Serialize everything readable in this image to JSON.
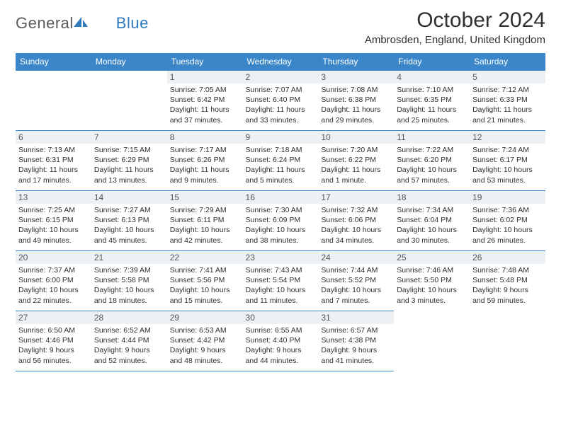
{
  "brand": {
    "part1": "General",
    "part2": "Blue"
  },
  "title": "October 2024",
  "location": "Ambrosden, England, United Kingdom",
  "colors": {
    "header_bg": "#3a86c8",
    "header_text": "#ffffff",
    "daynum_bg": "#eef1f3",
    "border": "#3a86c8",
    "text": "#303030",
    "logo_blue": "#2f79bd",
    "logo_gray": "#5a5a5a"
  },
  "weekdays": [
    "Sunday",
    "Monday",
    "Tuesday",
    "Wednesday",
    "Thursday",
    "Friday",
    "Saturday"
  ],
  "weeks": [
    [
      null,
      null,
      {
        "n": "1",
        "sr": "Sunrise: 7:05 AM",
        "ss": "Sunset: 6:42 PM",
        "dl": "Daylight: 11 hours and 37 minutes."
      },
      {
        "n": "2",
        "sr": "Sunrise: 7:07 AM",
        "ss": "Sunset: 6:40 PM",
        "dl": "Daylight: 11 hours and 33 minutes."
      },
      {
        "n": "3",
        "sr": "Sunrise: 7:08 AM",
        "ss": "Sunset: 6:38 PM",
        "dl": "Daylight: 11 hours and 29 minutes."
      },
      {
        "n": "4",
        "sr": "Sunrise: 7:10 AM",
        "ss": "Sunset: 6:35 PM",
        "dl": "Daylight: 11 hours and 25 minutes."
      },
      {
        "n": "5",
        "sr": "Sunrise: 7:12 AM",
        "ss": "Sunset: 6:33 PM",
        "dl": "Daylight: 11 hours and 21 minutes."
      }
    ],
    [
      {
        "n": "6",
        "sr": "Sunrise: 7:13 AM",
        "ss": "Sunset: 6:31 PM",
        "dl": "Daylight: 11 hours and 17 minutes."
      },
      {
        "n": "7",
        "sr": "Sunrise: 7:15 AM",
        "ss": "Sunset: 6:29 PM",
        "dl": "Daylight: 11 hours and 13 minutes."
      },
      {
        "n": "8",
        "sr": "Sunrise: 7:17 AM",
        "ss": "Sunset: 6:26 PM",
        "dl": "Daylight: 11 hours and 9 minutes."
      },
      {
        "n": "9",
        "sr": "Sunrise: 7:18 AM",
        "ss": "Sunset: 6:24 PM",
        "dl": "Daylight: 11 hours and 5 minutes."
      },
      {
        "n": "10",
        "sr": "Sunrise: 7:20 AM",
        "ss": "Sunset: 6:22 PM",
        "dl": "Daylight: 11 hours and 1 minute."
      },
      {
        "n": "11",
        "sr": "Sunrise: 7:22 AM",
        "ss": "Sunset: 6:20 PM",
        "dl": "Daylight: 10 hours and 57 minutes."
      },
      {
        "n": "12",
        "sr": "Sunrise: 7:24 AM",
        "ss": "Sunset: 6:17 PM",
        "dl": "Daylight: 10 hours and 53 minutes."
      }
    ],
    [
      {
        "n": "13",
        "sr": "Sunrise: 7:25 AM",
        "ss": "Sunset: 6:15 PM",
        "dl": "Daylight: 10 hours and 49 minutes."
      },
      {
        "n": "14",
        "sr": "Sunrise: 7:27 AM",
        "ss": "Sunset: 6:13 PM",
        "dl": "Daylight: 10 hours and 45 minutes."
      },
      {
        "n": "15",
        "sr": "Sunrise: 7:29 AM",
        "ss": "Sunset: 6:11 PM",
        "dl": "Daylight: 10 hours and 42 minutes."
      },
      {
        "n": "16",
        "sr": "Sunrise: 7:30 AM",
        "ss": "Sunset: 6:09 PM",
        "dl": "Daylight: 10 hours and 38 minutes."
      },
      {
        "n": "17",
        "sr": "Sunrise: 7:32 AM",
        "ss": "Sunset: 6:06 PM",
        "dl": "Daylight: 10 hours and 34 minutes."
      },
      {
        "n": "18",
        "sr": "Sunrise: 7:34 AM",
        "ss": "Sunset: 6:04 PM",
        "dl": "Daylight: 10 hours and 30 minutes."
      },
      {
        "n": "19",
        "sr": "Sunrise: 7:36 AM",
        "ss": "Sunset: 6:02 PM",
        "dl": "Daylight: 10 hours and 26 minutes."
      }
    ],
    [
      {
        "n": "20",
        "sr": "Sunrise: 7:37 AM",
        "ss": "Sunset: 6:00 PM",
        "dl": "Daylight: 10 hours and 22 minutes."
      },
      {
        "n": "21",
        "sr": "Sunrise: 7:39 AM",
        "ss": "Sunset: 5:58 PM",
        "dl": "Daylight: 10 hours and 18 minutes."
      },
      {
        "n": "22",
        "sr": "Sunrise: 7:41 AM",
        "ss": "Sunset: 5:56 PM",
        "dl": "Daylight: 10 hours and 15 minutes."
      },
      {
        "n": "23",
        "sr": "Sunrise: 7:43 AM",
        "ss": "Sunset: 5:54 PM",
        "dl": "Daylight: 10 hours and 11 minutes."
      },
      {
        "n": "24",
        "sr": "Sunrise: 7:44 AM",
        "ss": "Sunset: 5:52 PM",
        "dl": "Daylight: 10 hours and 7 minutes."
      },
      {
        "n": "25",
        "sr": "Sunrise: 7:46 AM",
        "ss": "Sunset: 5:50 PM",
        "dl": "Daylight: 10 hours and 3 minutes."
      },
      {
        "n": "26",
        "sr": "Sunrise: 7:48 AM",
        "ss": "Sunset: 5:48 PM",
        "dl": "Daylight: 9 hours and 59 minutes."
      }
    ],
    [
      {
        "n": "27",
        "sr": "Sunrise: 6:50 AM",
        "ss": "Sunset: 4:46 PM",
        "dl": "Daylight: 9 hours and 56 minutes."
      },
      {
        "n": "28",
        "sr": "Sunrise: 6:52 AM",
        "ss": "Sunset: 4:44 PM",
        "dl": "Daylight: 9 hours and 52 minutes."
      },
      {
        "n": "29",
        "sr": "Sunrise: 6:53 AM",
        "ss": "Sunset: 4:42 PM",
        "dl": "Daylight: 9 hours and 48 minutes."
      },
      {
        "n": "30",
        "sr": "Sunrise: 6:55 AM",
        "ss": "Sunset: 4:40 PM",
        "dl": "Daylight: 9 hours and 44 minutes."
      },
      {
        "n": "31",
        "sr": "Sunrise: 6:57 AM",
        "ss": "Sunset: 4:38 PM",
        "dl": "Daylight: 9 hours and 41 minutes."
      },
      null,
      null
    ]
  ]
}
